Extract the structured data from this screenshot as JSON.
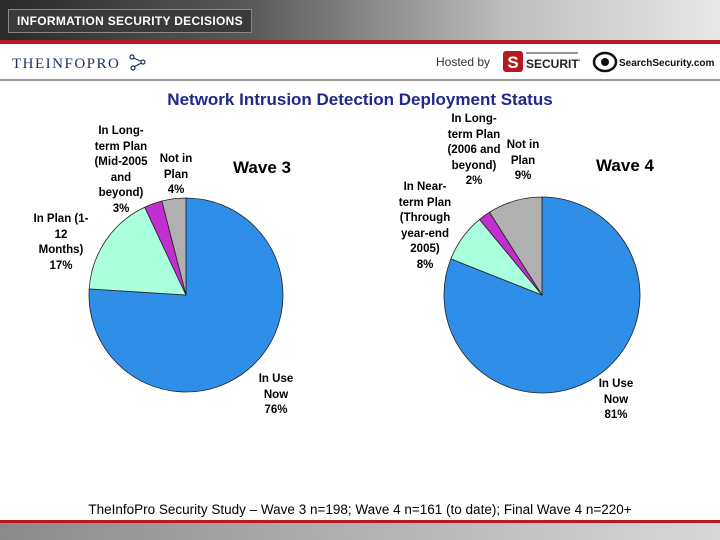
{
  "header": {
    "badge": "INFORMATION SECURITY DECISIONS",
    "brand": "THEINFOPRO",
    "hosted_by": "Hosted by",
    "sponsor_security": "SECURITY",
    "sponsor_site": "SearchSecurity.com"
  },
  "colors": {
    "in_use": "#2f8ee8",
    "in_plan": "#aaffdd",
    "long_term": "#c22fcf",
    "not_in_plan": "#b0b0b0",
    "title": "#1d2a8a",
    "accent_red": "#b51a22"
  },
  "chart_data": [
    {
      "type": "pie",
      "title": "Wave 3",
      "slices": [
        {
          "label": "In Use Now 76%",
          "lines": [
            "In Use",
            "Now",
            "76%"
          ],
          "value": 76
        },
        {
          "label": "In Plan (1-12 Months) 17%",
          "lines": [
            "In Plan (1-",
            "12",
            "Months)",
            "17%"
          ],
          "value": 17
        },
        {
          "label": "In Long-term Plan (Mid-2005 and beyond) 3%",
          "lines": [
            "In Long-",
            "term Plan",
            "(Mid-2005",
            "and",
            "beyond)",
            "3%"
          ],
          "value": 3
        },
        {
          "label": "Not in Plan 4%",
          "lines": [
            "Not in",
            "Plan",
            "4%"
          ],
          "value": 4
        }
      ]
    },
    {
      "type": "pie",
      "title": "Wave 4",
      "slices": [
        {
          "label": "In Use Now 81%",
          "lines": [
            "In Use",
            "Now",
            "81%"
          ],
          "value": 81
        },
        {
          "label": "In Near-term Plan (Through year-end 2005) 8%",
          "lines": [
            "In Near-",
            "term Plan",
            "(Through",
            "year-end",
            "2005)",
            "8%"
          ],
          "value": 8
        },
        {
          "label": "In Long-term Plan (2006 and beyond) 2%",
          "lines": [
            "In Long-",
            "term Plan",
            "(2006 and",
            "beyond)",
            "2%"
          ],
          "value": 2
        },
        {
          "label": "Not in Plan 9%",
          "lines": [
            "Not in",
            "Plan",
            "9%"
          ],
          "value": 9
        }
      ]
    }
  ],
  "page": {
    "title": "Network Intrusion Detection Deployment Status",
    "footer": "TheInfoPro Security Study – Wave 3 n=198; Wave 4 n=161 (to date); Final Wave 4 n=220+"
  }
}
